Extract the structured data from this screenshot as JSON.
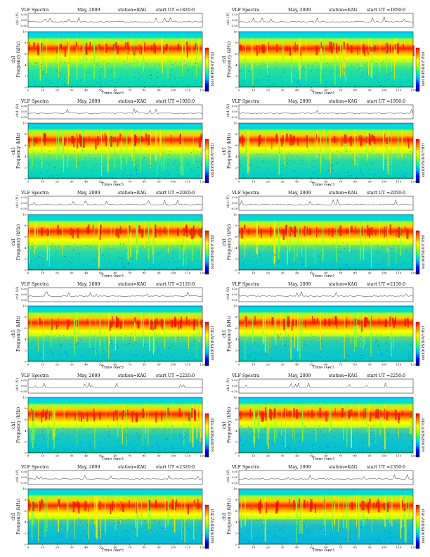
{
  "chart_data": [
    {
      "type": "heatmap",
      "title": "VLF Spectra",
      "date": "May, 2009",
      "station": "station=KAG",
      "start": "start  UT  =1820:0"
    },
    {
      "type": "heatmap",
      "title": "VLF Spectra",
      "date": "May, 2009",
      "station": "station=KAG",
      "start": "start  UT  =1850:0"
    },
    {
      "type": "heatmap",
      "title": "VLF Spectra",
      "date": "May, 2009",
      "station": "station=KAG",
      "start": "start  UT  =1920:0"
    },
    {
      "type": "heatmap",
      "title": "VLF Spectra",
      "date": "May, 2009",
      "station": "station=KAG",
      "start": "start  UT  =1950:0"
    },
    {
      "type": "heatmap",
      "title": "VLF Spectra",
      "date": "May, 2009",
      "station": "station=KAG",
      "start": "start  UT  =2020:0"
    },
    {
      "type": "heatmap",
      "title": "VLF Spectra",
      "date": "May, 2009",
      "station": "station=KAG",
      "start": "start  UT  =2050:0"
    },
    {
      "type": "heatmap",
      "title": "VLF Spectra",
      "date": "May, 2009",
      "station": "station=KAG",
      "start": "start  UT  =2120:0"
    },
    {
      "type": "heatmap",
      "title": "VLF Spectra",
      "date": "May, 2009",
      "station": "station=KAG",
      "start": "start  UT  =2150:0"
    },
    {
      "type": "heatmap",
      "title": "VLF Spectra",
      "date": "May, 2009",
      "station": "station=KAG",
      "start": "start  UT  =2220:0"
    },
    {
      "type": "heatmap",
      "title": "VLF Spectra",
      "date": "May, 2009",
      "station": "station=KAG",
      "start": "start  UT  =2250:0"
    },
    {
      "type": "heatmap",
      "title": "VLF Spectra",
      "date": "May, 2009",
      "station": "station=KAG",
      "start": "start  UT  =2320:0"
    },
    {
      "type": "heatmap",
      "title": "VLF Spectra",
      "date": "May, 2009",
      "station": "station=KAG",
      "start": "start  UT  =2350:0"
    }
  ],
  "shared": {
    "xlabel": "Time  (sec)",
    "ylabel": "Frequency  (kHz)",
    "ylabel_top": "ch1",
    "trace_label": "ch1 (V)",
    "trace_ticks": [
      "0.50",
      "0.00",
      "-0.50"
    ],
    "cbar_label": "log10(PSD)(V²/Hz)",
    "x_ticks": [
      "0",
      "10",
      "20",
      "30",
      "40",
      "50",
      "60",
      "70",
      "80",
      "90",
      "100",
      "110",
      "120"
    ],
    "y_ticks": [
      "0",
      "2",
      "4",
      "6",
      "8",
      "10"
    ],
    "xlim": [
      0,
      120
    ],
    "ylim": [
      0,
      10
    ],
    "colorscale": [
      "#000080",
      "#0000ff",
      "#00aaff",
      "#00ffaa",
      "#aaff00",
      "#ffff00",
      "#ff8800",
      "#ff0000"
    ]
  }
}
